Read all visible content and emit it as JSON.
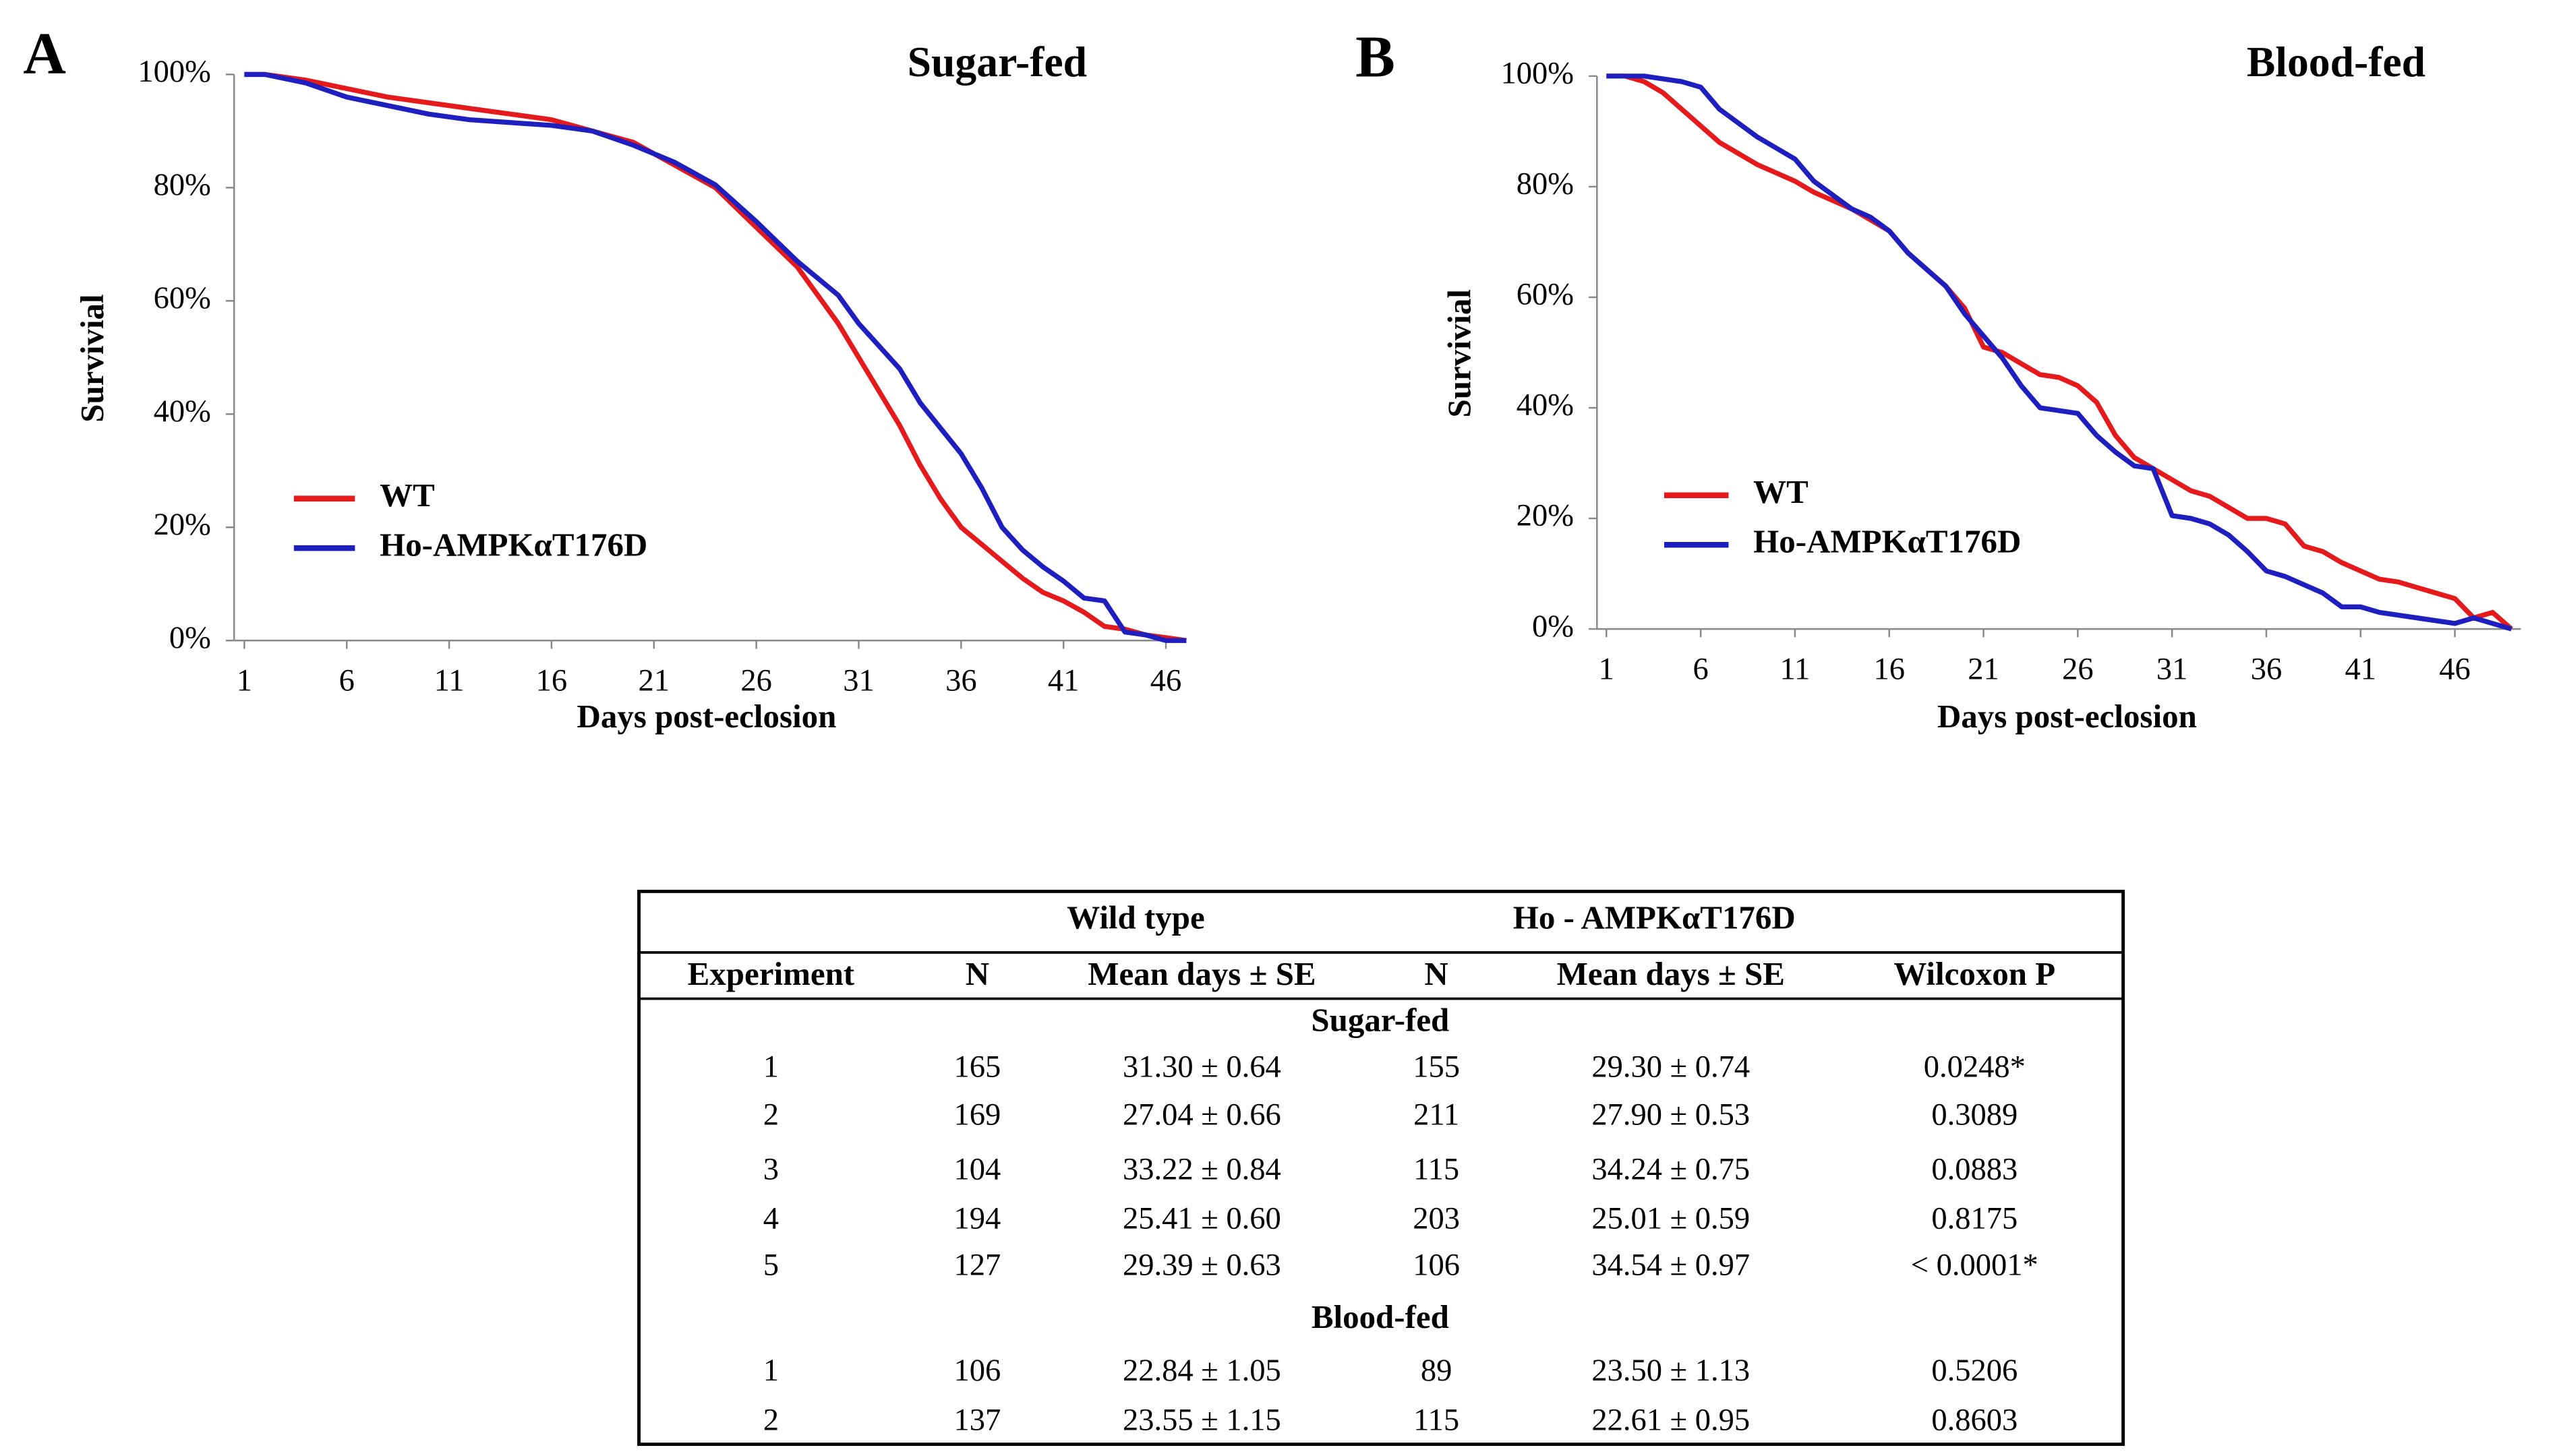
{
  "chart_data": [
    {
      "type": "line",
      "label": "A",
      "title": "Sugar-fed",
      "xlabel": "Days post-eclosion",
      "ylabel": "Survivial",
      "x": [
        1,
        2,
        4,
        6,
        8,
        10,
        12,
        14,
        16,
        18,
        20,
        22,
        24,
        26,
        28,
        30,
        31,
        32,
        33,
        34,
        35,
        36,
        37,
        38,
        39,
        40,
        41,
        42,
        43,
        44,
        45,
        46,
        47
      ],
      "series": [
        {
          "name": "WT",
          "color": "#e41a1c",
          "values": [
            100,
            100,
            99,
            97.5,
            96,
            95,
            94,
            93,
            92,
            90,
            88,
            84,
            80,
            73,
            66,
            56,
            50,
            44,
            38,
            31,
            25,
            20,
            17,
            14,
            11,
            8.5,
            7,
            5,
            2.5,
            2,
            1,
            0.5,
            0
          ]
        },
        {
          "name": "Ho-AMPKαT176D",
          "color": "#1f1fbf",
          "values": [
            100,
            100,
            98.5,
            96,
            94.5,
            93,
            92,
            91.5,
            91,
            90,
            87.5,
            84.5,
            80.5,
            74,
            67,
            61,
            56,
            52,
            48,
            42,
            37.5,
            33,
            27,
            20,
            16,
            13,
            10.5,
            7.5,
            7,
            1.5,
            1,
            0,
            0
          ]
        }
      ],
      "xlim": [
        0.5,
        47
      ],
      "xticks": [
        1,
        6,
        11,
        16,
        21,
        26,
        31,
        36,
        41,
        46
      ],
      "ylim": [
        0,
        100
      ],
      "yticks": [
        {
          "value": 0,
          "label": "0%"
        },
        {
          "value": 20,
          "label": "20%"
        },
        {
          "value": 40,
          "label": "40%"
        },
        {
          "value": 60,
          "label": "60%"
        },
        {
          "value": 80,
          "label": "80%"
        },
        {
          "value": 100,
          "label": "100%"
        }
      ],
      "grid": false,
      "legend": "lower left"
    },
    {
      "type": "line",
      "label": "B",
      "title": "Blood-fed",
      "xlabel": "Days post-eclosion",
      "ylabel": "Survivial",
      "x": [
        1,
        2,
        3,
        4,
        5,
        6,
        7,
        8,
        9,
        10,
        11,
        12,
        13,
        14,
        15,
        16,
        17,
        18,
        19,
        20,
        21,
        22,
        23,
        24,
        25,
        26,
        27,
        28,
        29,
        30,
        31,
        32,
        33,
        34,
        35,
        36,
        37,
        38,
        39,
        40,
        41,
        42,
        43,
        44,
        45,
        46,
        47,
        48,
        49
      ],
      "series": [
        {
          "name": "WT",
          "color": "#e41a1c",
          "values": [
            100,
            100,
            99,
            97,
            94,
            91,
            88,
            86,
            84,
            82.5,
            81,
            79,
            77.5,
            76,
            74,
            72,
            68,
            65,
            62,
            58,
            51,
            50,
            48,
            46,
            45.5,
            44,
            41,
            35,
            31,
            29,
            27,
            25,
            24,
            22,
            20,
            20,
            19,
            15,
            14,
            12,
            10.5,
            9,
            8.5,
            7.5,
            6.5,
            5.5,
            2,
            3,
            0
          ]
        },
        {
          "name": "Ho-AMPKαT176D",
          "color": "#1f1fbf",
          "values": [
            100,
            100,
            100,
            99.5,
            99,
            98,
            94,
            91.5,
            89,
            87,
            85,
            81,
            78.5,
            76,
            74.5,
            72,
            68,
            65,
            62,
            57,
            53,
            49,
            44,
            40,
            39.5,
            39,
            35,
            32,
            29.5,
            29,
            20.5,
            20,
            19,
            17,
            14,
            10.5,
            9.5,
            8,
            6.5,
            4,
            4,
            3,
            2.5,
            2,
            1.5,
            1,
            2,
            1,
            0
          ]
        }
      ],
      "xlim": [
        0.5,
        49.5
      ],
      "xticks": [
        1,
        6,
        11,
        16,
        21,
        26,
        31,
        36,
        41,
        46
      ],
      "ylim": [
        0,
        100
      ],
      "yticks": [
        {
          "value": 0,
          "label": "0%"
        },
        {
          "value": 20,
          "label": "20%"
        },
        {
          "value": 40,
          "label": "40%"
        },
        {
          "value": 60,
          "label": "60%"
        },
        {
          "value": 80,
          "label": "80%"
        },
        {
          "value": 100,
          "label": "100%"
        }
      ],
      "grid": false,
      "legend": "lower left"
    }
  ],
  "table": {
    "groups": [
      "Wild type",
      "Ho - AMPKαT176D"
    ],
    "columns": [
      "Experiment",
      "N",
      "Mean days ± SE",
      "N",
      "Mean days ± SE",
      "Wilcoxon P"
    ],
    "sections": [
      {
        "title": "Sugar-fed",
        "rows": [
          [
            "1",
            "165",
            "31.30 ± 0.64",
            "155",
            "29.30 ± 0.74",
            "0.0248*"
          ],
          [
            "2",
            "169",
            "27.04 ± 0.66",
            "211",
            "27.90 ± 0.53",
            "0.3089"
          ],
          [
            "3",
            "104",
            "33.22 ± 0.84",
            "115",
            "34.24 ± 0.75",
            "0.0883"
          ],
          [
            "4",
            "194",
            "25.41 ± 0.60",
            "203",
            "25.01 ± 0.59",
            "0.8175"
          ],
          [
            "5",
            "127",
            "29.39 ± 0.63",
            "106",
            "34.54 ± 0.97",
            "< 0.0001*"
          ]
        ]
      },
      {
        "title": "Blood-fed",
        "rows": [
          [
            "1",
            "106",
            "22.84 ± 1.05",
            "89",
            "23.50 ± 1.13",
            "0.5206"
          ],
          [
            "2",
            "137",
            "23.55 ± 1.15",
            "115",
            "22.61 ± 0.95",
            "0.8603"
          ]
        ]
      }
    ]
  }
}
